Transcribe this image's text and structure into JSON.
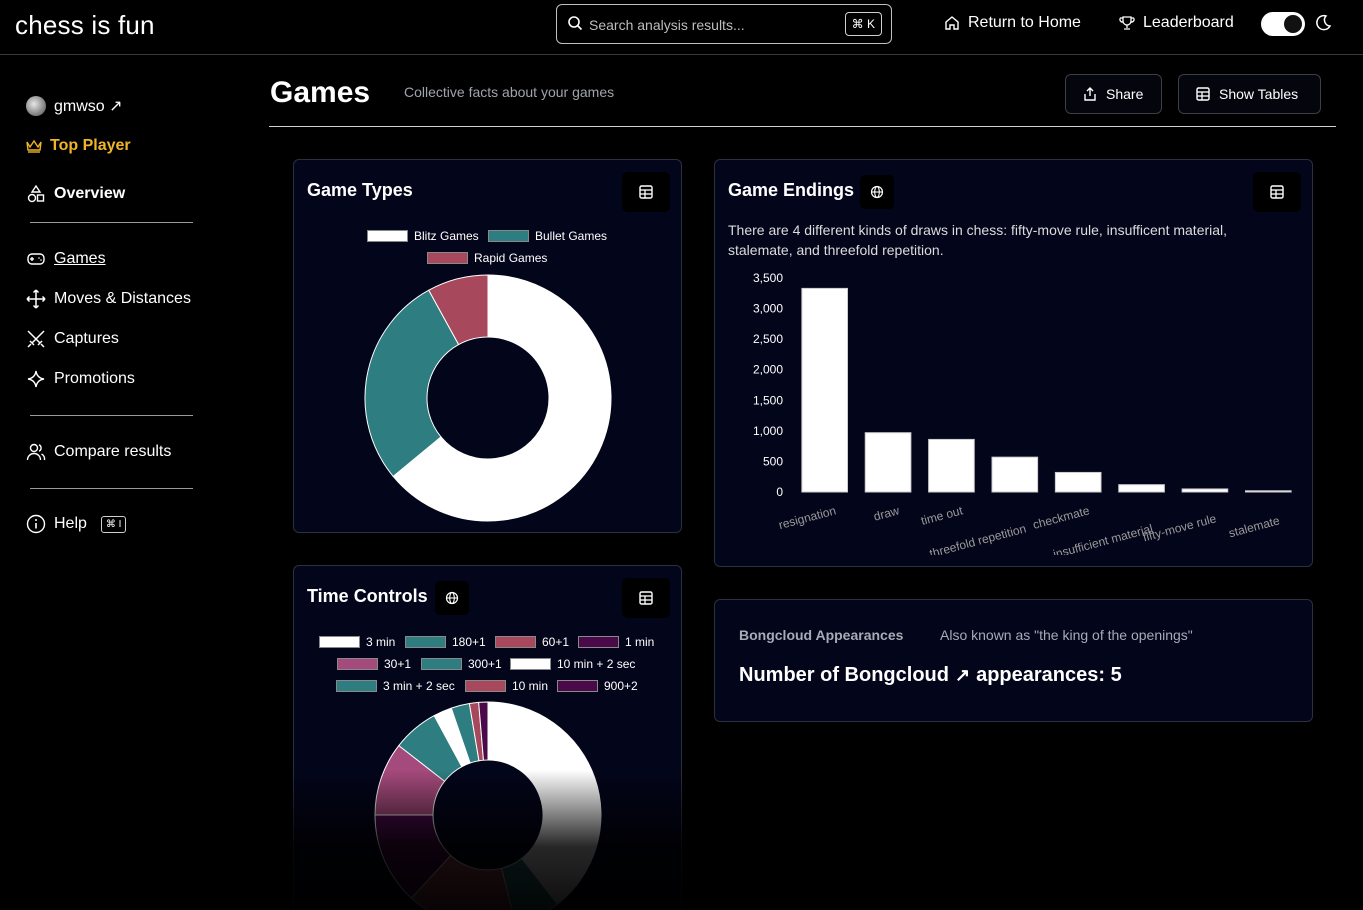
{
  "topbar": {
    "brand": "chess is fun",
    "search_placeholder": "Search analysis results...",
    "search_shortcut": "⌘ K",
    "home_label": "Return to Home",
    "leaderboard_label": "Leaderboard"
  },
  "sidebar": {
    "username": "gmwso ↗",
    "top_player": "Top Player",
    "overview": "Overview",
    "items": [
      {
        "label": "Games"
      },
      {
        "label": "Moves & Distances"
      },
      {
        "label": "Captures"
      },
      {
        "label": "Promotions"
      }
    ],
    "compare": "Compare results",
    "help": "Help",
    "help_shortcut": "⌘ I"
  },
  "header": {
    "title": "Games",
    "subtitle": "Collective facts about your games",
    "share_label": "Share",
    "tables_label": "Show Tables"
  },
  "cards": {
    "game_types_title": "Game Types",
    "time_controls_title": "Time Controls",
    "game_endings_title": "Game Endings",
    "game_endings_desc": "There are 4 different kinds of draws in chess: fifty-move rule, insufficent material, stalemate, and threefold repetition.",
    "bongcloud_label": "Bongcloud Appearances",
    "bongcloud_sub": "Also known as \"the king of the openings\"",
    "bongcloud_main_prefix": "Number of Bongcloud",
    "bongcloud_main_suffix": "appearances: 5"
  },
  "colors": {
    "white": "#ffffff",
    "teal": "#2e7d80",
    "rose": "#a8485c",
    "purple": "#4a0a4a",
    "pink": "#a54a7c",
    "maroon": "#5a1228",
    "gold": "#f0b429"
  },
  "chart_data": [
    {
      "type": "pie",
      "variant": "doughnut",
      "title": "Game Types",
      "labels": [
        "Blitz Games",
        "Bullet Games",
        "Rapid Games"
      ],
      "values": [
        64,
        28,
        8
      ],
      "colors": [
        "#ffffff",
        "#2e7d80",
        "#a8485c"
      ]
    },
    {
      "type": "bar",
      "title": "Game Endings",
      "categories": [
        "resignation",
        "draw",
        "time out",
        "threefold repetition",
        "checkmate",
        "insufficient material",
        "fifty-move rule",
        "stalemate"
      ],
      "values": [
        3330,
        970,
        860,
        570,
        320,
        120,
        50,
        20
      ],
      "ylim": [
        0,
        3500
      ],
      "yticks": [
        0,
        500,
        1000,
        1500,
        2000,
        2500,
        3000,
        3500
      ],
      "ytick_labels": [
        "0",
        "500",
        "1,000",
        "1,500",
        "2,000",
        "2,500",
        "3,000",
        "3,500"
      ]
    },
    {
      "type": "pie",
      "variant": "doughnut",
      "title": "Time Controls",
      "labels": [
        "3 min",
        "180+1",
        "60+1",
        "1 min",
        "30+1",
        "300+1",
        "10 min + 2 sec",
        "3 min + 2 sec",
        "10 min",
        "900+2"
      ],
      "values": [
        30,
        5,
        12,
        10,
        8,
        5,
        2,
        2,
        1,
        1
      ],
      "colors": [
        "#ffffff",
        "#2e7d80",
        "#a8485c",
        "#4a0a4a",
        "#a54a7c",
        "#2e7d80",
        "#ffffff",
        "#2e7d80",
        "#a8485c",
        "#4a0a4a"
      ]
    }
  ]
}
